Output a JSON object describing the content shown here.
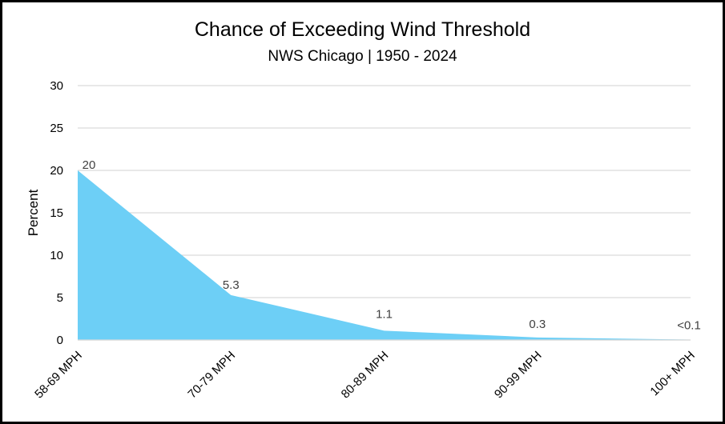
{
  "chart_data": {
    "type": "area",
    "title": "Chance of Exceeding Wind Threshold",
    "subtitle": "NWS Chicago | 1950 - 2024",
    "xlabel": "",
    "ylabel": "Percent",
    "categories": [
      "58-69 MPH",
      "70-79 MPH",
      "80-89 MPH",
      "90-99 MPH",
      "100+ MPH"
    ],
    "values": [
      20,
      5.3,
      1.1,
      0.3,
      0.05
    ],
    "data_labels": [
      "20",
      "5.3",
      "1.1",
      "0.3",
      "<0.1"
    ],
    "ylim": [
      0,
      30
    ],
    "yticks": [
      0,
      5,
      10,
      15,
      20,
      25,
      30
    ],
    "grid": true,
    "legend": "none",
    "colors": {
      "area": "#6dcff6",
      "grid": "#d9d9d9",
      "frame": "#000000"
    }
  }
}
